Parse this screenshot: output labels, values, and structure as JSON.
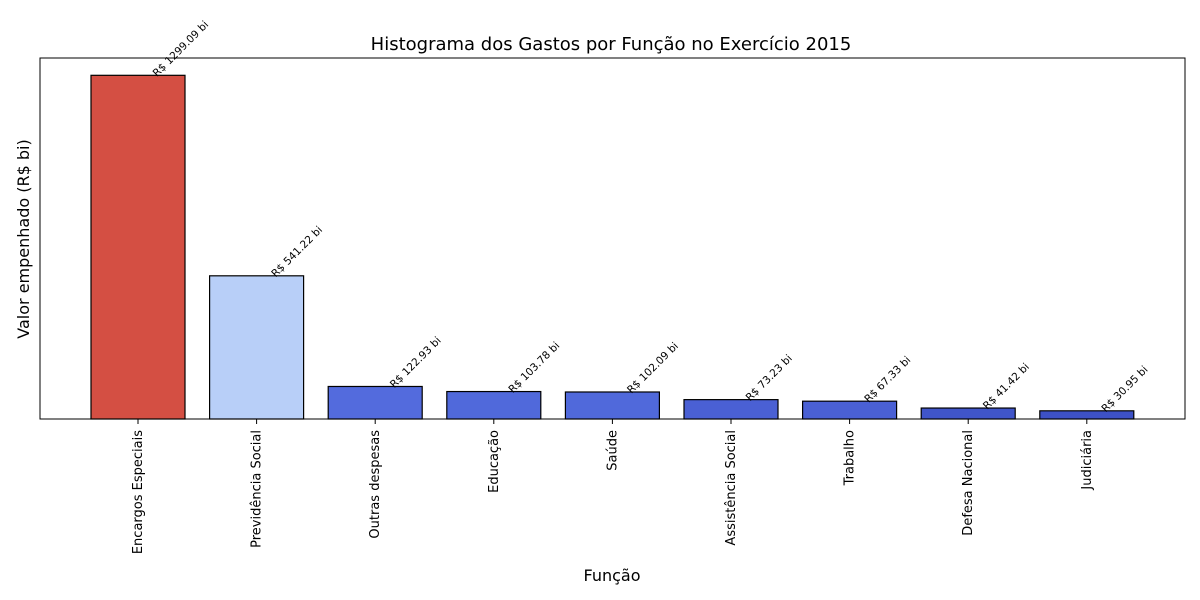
{
  "chart_data": {
    "type": "bar",
    "title": "Histograma dos Gastos por Função no Exercício 2015",
    "xlabel": "Função",
    "ylabel": "Valor empenhado (R$ bi)",
    "ylim": [
      0,
      1364.5
    ],
    "grid": false,
    "categories": [
      "Encargos Especiais",
      "Previdência Social",
      "Outras despesas",
      "Educação",
      "Saúde",
      "Assistência Social",
      "Trabalho",
      "Defesa Nacional",
      "Judiciária"
    ],
    "values": [
      1299.09,
      541.22,
      122.93,
      103.78,
      102.09,
      73.23,
      67.33,
      41.42,
      30.95
    ],
    "data_labels": [
      "R$ 1299.09 bi",
      "R$ 541.22 bi",
      "R$ 122.93 bi",
      "R$ 103.78 bi",
      "R$ 102.09 bi",
      "R$ 73.23 bi",
      "R$ 67.33 bi",
      "R$ 41.42 bi",
      "R$ 30.95 bi"
    ],
    "colors": [
      "#d44f43",
      "#b8cff8",
      "#536bdd",
      "#5069db",
      "#5069db",
      "#4a60d4",
      "#4a60d4",
      "#4055c9",
      "#3d51c6"
    ]
  }
}
